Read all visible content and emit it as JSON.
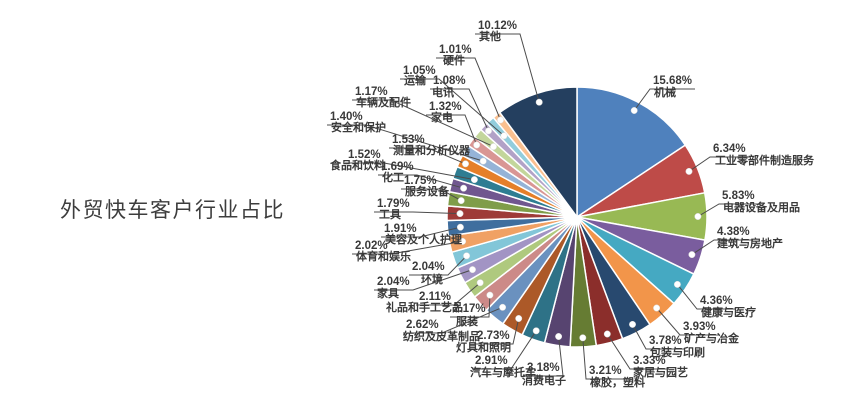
{
  "title": "外贸快车客户行业占比",
  "colors": {
    "background": "#ffffff",
    "title_text": "#3d3d3d",
    "label_text": "#3a3a3a",
    "leader_line": "#4c4c4c",
    "callout_dot": "#ffffff",
    "slice_gap": "#ffffff"
  },
  "chart_data": {
    "type": "pie",
    "title": "外贸快车客户行业占比",
    "value_unit": "%",
    "start_angle_deg": 0,
    "direction": "clockwise",
    "legend": "none",
    "label_style": "callout with percent above industry name",
    "slices": [
      {
        "label": "机械",
        "value": 15.68,
        "color": "#4F81BD"
      },
      {
        "label": "工业零部件制造服务",
        "value": 6.34,
        "color": "#BE4B48"
      },
      {
        "label": "电器设备及用品",
        "value": 5.83,
        "color": "#98B954"
      },
      {
        "label": "建筑与房地产",
        "value": 4.38,
        "color": "#7A5D9E"
      },
      {
        "label": "健康与医疗",
        "value": 4.36,
        "color": "#45A9C2"
      },
      {
        "label": "矿产与冶金",
        "value": 3.93,
        "color": "#F2954A"
      },
      {
        "label": "包装与印刷",
        "value": 3.78,
        "color": "#28496F"
      },
      {
        "label": "家居与园艺",
        "value": 3.33,
        "color": "#8B2E2B"
      },
      {
        "label": "橡胶，塑料",
        "value": 3.21,
        "color": "#667C33"
      },
      {
        "label": "消费电子",
        "value": 3.18,
        "color": "#574470"
      },
      {
        "label": "汽车与摩托车",
        "value": 2.91,
        "color": "#2E7287"
      },
      {
        "label": "灯具和照明",
        "value": 2.73,
        "color": "#AC5928"
      },
      {
        "label": "纺织及皮革制品",
        "value": 2.62,
        "color": "#6A91BF"
      },
      {
        "label": "服装",
        "value": 2.17,
        "color": "#CC8A88"
      },
      {
        "label": "礼品和手工艺品",
        "value": 2.11,
        "color": "#AFC97E"
      },
      {
        "label": "家具",
        "value": 2.04,
        "color": "#A294C4"
      },
      {
        "label": "环境",
        "value": 2.04,
        "color": "#82C6D8"
      },
      {
        "label": "体育和娱乐",
        "value": 2.02,
        "color": "#F0A164"
      },
      {
        "label": "美容及个人护理",
        "value": 1.91,
        "color": "#3F6E9E"
      },
      {
        "label": "工具",
        "value": 1.79,
        "color": "#9E3B38"
      },
      {
        "label": "服务设备",
        "value": 1.75,
        "color": "#7F9D49"
      },
      {
        "label": "化工",
        "value": 1.69,
        "color": "#70568F"
      },
      {
        "label": "食品和饮料",
        "value": 1.52,
        "color": "#2E7D92"
      },
      {
        "label": "测量和分析仪器",
        "value": 1.53,
        "color": "#E57F29"
      },
      {
        "label": "安全和保护",
        "value": 1.4,
        "color": "#95B3D7"
      },
      {
        "label": "家电",
        "value": 1.32,
        "color": "#D99694"
      },
      {
        "label": "车辆及配件",
        "value": 1.17,
        "color": "#C3D69B"
      },
      {
        "label": "电讯",
        "value": 1.08,
        "color": "#B2A2C7"
      },
      {
        "label": "运输",
        "value": 1.05,
        "color": "#92CDDC"
      },
      {
        "label": "硬件",
        "value": 1.01,
        "color": "#FAC090"
      },
      {
        "label": "其他",
        "value": 10.12,
        "color": "#243F5F"
      }
    ]
  }
}
